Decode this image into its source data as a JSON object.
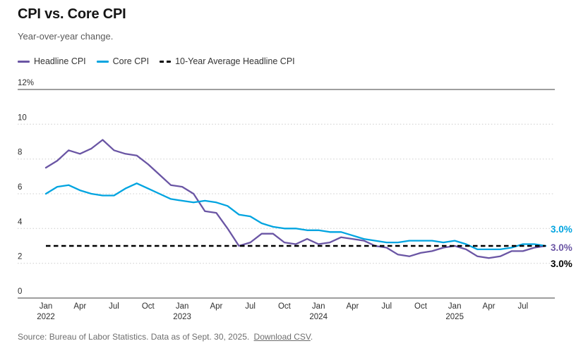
{
  "header": {
    "title": "CPI vs. Core CPI",
    "subtitle": "Year-over-year change."
  },
  "legend": {
    "items": [
      {
        "label": "Headline CPI",
        "color": "#6a55a4",
        "line_style": "solid"
      },
      {
        "label": "Core CPI",
        "color": "#00a4e0",
        "line_style": "solid"
      },
      {
        "label": "10-Year Average Headline CPI",
        "color": "#000000",
        "line_style": "dashed"
      }
    ]
  },
  "chart_data": {
    "type": "line",
    "title": "CPI vs. Core CPI",
    "subtitle": "Year-over-year change.",
    "x_unit": "month",
    "x_start": "2022-01",
    "x_end": "2025-09",
    "n_points": 45,
    "ylim": [
      0,
      12
    ],
    "grid": "horizontal-dotted",
    "y_ticks": [
      {
        "value": 12,
        "label": "12%",
        "solid": true
      },
      {
        "value": 10,
        "label": "10",
        "solid": false
      },
      {
        "value": 8,
        "label": "8",
        "solid": false
      },
      {
        "value": 6,
        "label": "6",
        "solid": false
      },
      {
        "value": 4,
        "label": "4",
        "solid": false
      },
      {
        "value": 2,
        "label": "2",
        "solid": false
      },
      {
        "value": 0,
        "label": "0",
        "solid": true
      }
    ],
    "x_ticks": [
      {
        "month_index": 0,
        "label": "Jan",
        "sub": "2022"
      },
      {
        "month_index": 3,
        "label": "Apr",
        "sub": ""
      },
      {
        "month_index": 6,
        "label": "Jul",
        "sub": ""
      },
      {
        "month_index": 9,
        "label": "Oct",
        "sub": ""
      },
      {
        "month_index": 12,
        "label": "Jan",
        "sub": "2023"
      },
      {
        "month_index": 15,
        "label": "Apr",
        "sub": ""
      },
      {
        "month_index": 18,
        "label": "Jul",
        "sub": ""
      },
      {
        "month_index": 21,
        "label": "Oct",
        "sub": ""
      },
      {
        "month_index": 24,
        "label": "Jan",
        "sub": "2024"
      },
      {
        "month_index": 27,
        "label": "Apr",
        "sub": ""
      },
      {
        "month_index": 30,
        "label": "Jul",
        "sub": ""
      },
      {
        "month_index": 33,
        "label": "Oct",
        "sub": ""
      },
      {
        "month_index": 36,
        "label": "Jan",
        "sub": "2025"
      },
      {
        "month_index": 39,
        "label": "Apr",
        "sub": ""
      },
      {
        "month_index": 42,
        "label": "Jul",
        "sub": ""
      }
    ],
    "series": [
      {
        "name": "Headline CPI",
        "color": "#6a55a4",
        "values": [
          7.5,
          7.9,
          8.5,
          8.3,
          8.6,
          9.1,
          8.5,
          8.3,
          8.2,
          7.7,
          7.1,
          6.5,
          6.4,
          6.0,
          5.0,
          4.9,
          4.0,
          3.0,
          3.2,
          3.7,
          3.7,
          3.2,
          3.1,
          3.4,
          3.1,
          3.2,
          3.5,
          3.4,
          3.3,
          3.0,
          2.9,
          2.5,
          2.4,
          2.6,
          2.7,
          2.9,
          3.0,
          2.8,
          2.4,
          2.3,
          2.4,
          2.7,
          2.7,
          2.9,
          3.0
        ]
      },
      {
        "name": "Core CPI",
        "color": "#00a4e0",
        "values": [
          6.0,
          6.4,
          6.5,
          6.2,
          6.0,
          5.9,
          5.9,
          6.3,
          6.6,
          6.3,
          6.0,
          5.7,
          5.6,
          5.5,
          5.6,
          5.5,
          5.3,
          4.8,
          4.7,
          4.3,
          4.1,
          4.0,
          4.0,
          3.9,
          3.9,
          3.8,
          3.8,
          3.6,
          3.4,
          3.3,
          3.2,
          3.2,
          3.3,
          3.3,
          3.3,
          3.2,
          3.3,
          3.1,
          2.8,
          2.8,
          2.8,
          2.9,
          3.1,
          3.1,
          3.0
        ]
      }
    ],
    "avg_line": {
      "name": "10-Year Average Headline CPI",
      "value": 3.0,
      "color": "#000000",
      "style": "dashed"
    },
    "end_labels": [
      {
        "series": "Core CPI",
        "label": "3.0%",
        "color": "#00a4e0",
        "dy": -23
      },
      {
        "series": "Headline CPI",
        "label": "3.0%",
        "color": "#6a55a4",
        "dy": 3
      },
      {
        "series": "10-Year Average Headline CPI",
        "label": "3.0%",
        "color": "#000000",
        "dy": 26
      }
    ],
    "legend_position": "top"
  },
  "footer": {
    "source_text": "Source: Bureau of Labor Statistics. Data as of Sept. 30, 2025.",
    "link_label": "Download CSV",
    "suffix": "."
  }
}
